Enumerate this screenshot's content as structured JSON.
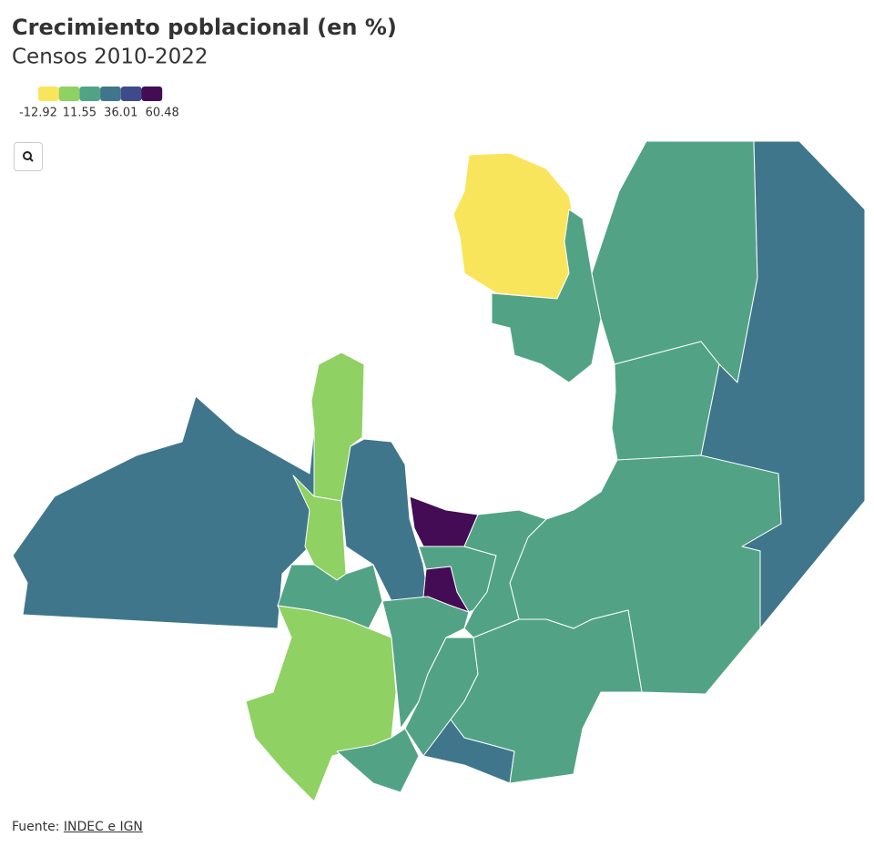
{
  "title": "Crecimiento poblacional (en %)",
  "subtitle": "Censos 2010-2022",
  "legend": {
    "colors": [
      "#f9e55b",
      "#8fd163",
      "#52a386",
      "#3f768b",
      "#3f4a8a",
      "#440c54"
    ],
    "range": [
      -12.92,
      60.48
    ],
    "ticks": [
      -12.92,
      11.55,
      36.01,
      60.48
    ]
  },
  "source": {
    "prefix": "Fuente:",
    "link": "INDEC e IGN"
  }
}
